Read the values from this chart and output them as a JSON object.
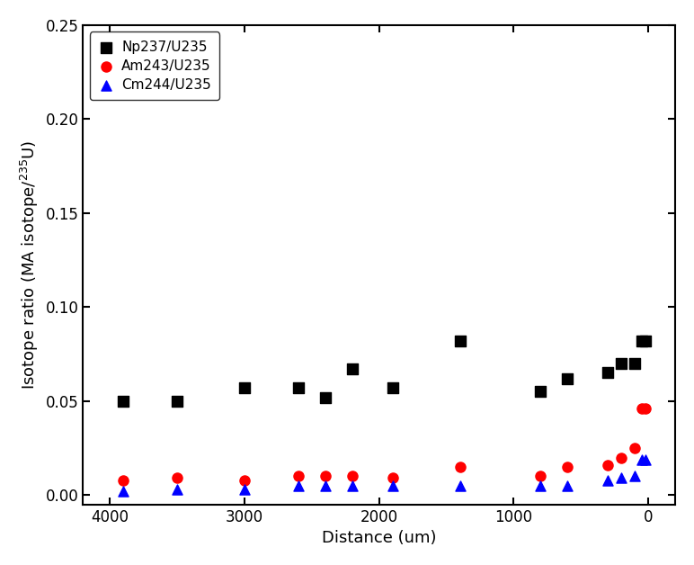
{
  "np237_x": [
    3900,
    3500,
    3000,
    2600,
    2200,
    1900,
    2400,
    800,
    1400,
    600,
    300,
    200,
    100,
    50,
    20
  ],
  "np237_y": [
    0.05,
    0.05,
    0.057,
    0.057,
    0.067,
    0.057,
    0.052,
    0.055,
    0.082,
    0.062,
    0.065,
    0.07,
    0.07,
    0.082,
    0.082
  ],
  "am243_x": [
    3900,
    3500,
    3000,
    2600,
    2200,
    1900,
    2400,
    800,
    1400,
    600,
    300,
    200,
    100,
    50,
    20
  ],
  "am243_y": [
    0.008,
    0.009,
    0.008,
    0.01,
    0.01,
    0.009,
    0.01,
    0.01,
    0.015,
    0.015,
    0.016,
    0.02,
    0.025,
    0.046,
    0.046
  ],
  "cm244_x": [
    3900,
    3500,
    3000,
    2600,
    2200,
    1900,
    2400,
    800,
    1400,
    600,
    300,
    200,
    100,
    50,
    20
  ],
  "cm244_y": [
    0.002,
    0.003,
    0.003,
    0.005,
    0.005,
    0.005,
    0.005,
    0.005,
    0.005,
    0.005,
    0.008,
    0.009,
    0.01,
    0.019,
    0.019
  ],
  "xlabel": "Distance (um)",
  "ylabel": "Isotope ratio (MA isotope/",
  "ylabel_super": "235",
  "ylabel_end": "U)",
  "xlim": [
    4200,
    -200
  ],
  "ylim": [
    -0.005,
    0.25
  ],
  "yticks": [
    0.0,
    0.05,
    0.1,
    0.15,
    0.2,
    0.25
  ],
  "xticks": [
    4000,
    3000,
    2000,
    1000,
    0
  ],
  "legend_labels": [
    "Np237/U235",
    "Am243/U235",
    "Cm244/U235"
  ],
  "np237_color": "#000000",
  "am243_color": "#ff0000",
  "cm244_color": "#0000ff",
  "background_color": "#ffffff",
  "marker_np": "s",
  "marker_am": "o",
  "marker_cm": "^",
  "markersize": 8,
  "fontsize_label": 13,
  "fontsize_tick": 12,
  "fontsize_legend": 11
}
